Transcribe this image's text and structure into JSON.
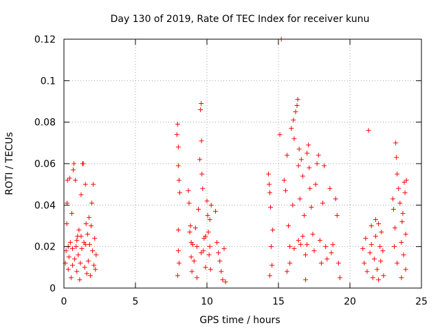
{
  "chart_data": {
    "type": "scatter",
    "title": "Day 130 of 2019, Rate Of TEC Index for receiver kunu",
    "xlabel": "GPS time / hours",
    "ylabel": "ROTI / TECUs",
    "xlim": [
      0,
      25
    ],
    "ylim": [
      0,
      0.12
    ],
    "xticks": [
      0,
      5,
      10,
      15,
      20,
      25
    ],
    "yticks": [
      0,
      0.02,
      0.04,
      0.06,
      0.08,
      0.1,
      0.12
    ],
    "xtick_labels": [
      "0",
      "5",
      "10",
      "15",
      "20",
      "25"
    ],
    "ytick_labels": [
      "0",
      "0.02",
      "0.04",
      "0.06",
      "0.08",
      "0.1",
      "0.12"
    ],
    "grid": true,
    "marker": "plus",
    "color": "#ff0000",
    "series": [
      {
        "values": [
          [
            0.1,
            0.012
          ],
          [
            0.15,
            0.018
          ],
          [
            0.2,
            0.031
          ],
          [
            0.22,
            0.041
          ],
          [
            0.25,
            0.052
          ],
          [
            0.3,
            0.009
          ],
          [
            0.35,
            0.015
          ],
          [
            0.4,
            0.053
          ],
          [
            0.45,
            0.022
          ],
          [
            0.5,
            0.005
          ],
          [
            0.55,
            0.036
          ],
          [
            0.6,
            0.011
          ],
          [
            0.65,
            0.057
          ],
          [
            0.7,
            0.06
          ],
          [
            0.75,
            0.014
          ],
          [
            0.8,
            0.052
          ],
          [
            0.85,
            0.02
          ],
          [
            0.9,
            0.008
          ],
          [
            0.95,
            0.025
          ],
          [
            1.0,
            0.016
          ],
          [
            1.05,
            0.028
          ],
          [
            1.1,
            0.004
          ],
          [
            1.15,
            0.012
          ],
          [
            1.2,
            0.045
          ],
          [
            1.25,
            0.019
          ],
          [
            1.3,
            0.06
          ],
          [
            1.35,
            0.06
          ],
          [
            1.4,
            0.022
          ],
          [
            1.45,
            0.01
          ],
          [
            1.5,
            0.05
          ],
          [
            1.55,
            0.031
          ],
          [
            1.6,
            0.007
          ],
          [
            1.65,
            0.026
          ],
          [
            1.7,
            0.013
          ],
          [
            1.75,
            0.034
          ],
          [
            1.8,
            0.021
          ],
          [
            1.85,
            0.006
          ],
          [
            1.9,
            0.03
          ],
          [
            1.95,
            0.041
          ],
          [
            2.0,
            0.018
          ],
          [
            2.05,
            0.05
          ],
          [
            2.1,
            0.011
          ],
          [
            2.15,
            0.024
          ],
          [
            2.2,
            0.009
          ],
          [
            2.25,
            0.016
          ],
          [
            0.3,
            0.02
          ],
          [
            0.6,
            0.019
          ],
          [
            0.9,
            0.023
          ],
          [
            1.2,
            0.025
          ],
          [
            1.5,
            0.021
          ],
          [
            7.9,
            0.074
          ],
          [
            7.95,
            0.079
          ],
          [
            8.0,
            0.068
          ],
          [
            8.0,
            0.059
          ],
          [
            8.05,
            0.052
          ],
          [
            8.0,
            0.028
          ],
          [
            8.05,
            0.012
          ],
          [
            7.95,
            0.006
          ],
          [
            8.1,
            0.046
          ],
          [
            8.0,
            0.018
          ],
          [
            8.7,
            0.047
          ],
          [
            8.75,
            0.041
          ],
          [
            8.8,
            0.027
          ],
          [
            8.85,
            0.03
          ],
          [
            8.9,
            0.015
          ],
          [
            8.95,
            0.008
          ],
          [
            9.0,
            0.021
          ],
          [
            9.1,
            0.013
          ],
          [
            9.2,
            0.029
          ],
          [
            9.3,
            0.005
          ],
          [
            9.4,
            0.038
          ],
          [
            9.5,
            0.062
          ],
          [
            9.55,
            0.086
          ],
          [
            9.6,
            0.089
          ],
          [
            9.62,
            0.071
          ],
          [
            9.65,
            0.055
          ],
          [
            9.7,
            0.048
          ],
          [
            9.75,
            0.018
          ],
          [
            9.8,
            0.024
          ],
          [
            9.9,
            0.01
          ],
          [
            10.0,
            0.042
          ],
          [
            10.05,
            0.035
          ],
          [
            10.1,
            0.027
          ],
          [
            10.15,
            0.016
          ],
          [
            10.2,
            0.033
          ],
          [
            10.25,
            0.009
          ],
          [
            10.3,
            0.04
          ],
          [
            10.6,
            0.037
          ],
          [
            10.7,
            0.022
          ],
          [
            10.8,
            0.017
          ],
          [
            10.9,
            0.013
          ],
          [
            11.0,
            0.008
          ],
          [
            11.1,
            0.004
          ],
          [
            11.2,
            0.019
          ],
          [
            11.3,
            0.003
          ],
          [
            9.3,
            0.02
          ],
          [
            9.6,
            0.017
          ],
          [
            9.9,
            0.025
          ],
          [
            10.2,
            0.02
          ],
          [
            8.9,
            0.022
          ],
          [
            14.3,
            0.055
          ],
          [
            14.35,
            0.05
          ],
          [
            14.4,
            0.046
          ],
          [
            14.45,
            0.039
          ],
          [
            14.5,
            0.02
          ],
          [
            14.55,
            0.011
          ],
          [
            14.6,
            0.028
          ],
          [
            14.4,
            0.006
          ],
          [
            15.1,
            0.074
          ],
          [
            15.2,
            0.12
          ],
          [
            15.4,
            0.052
          ],
          [
            15.5,
            0.047
          ],
          [
            15.6,
            0.064
          ],
          [
            15.7,
            0.03
          ],
          [
            15.8,
            0.012
          ],
          [
            15.9,
            0.077
          ],
          [
            16.0,
            0.04
          ],
          [
            16.05,
            0.081
          ],
          [
            16.1,
            0.072
          ],
          [
            16.2,
            0.085
          ],
          [
            16.3,
            0.088
          ],
          [
            16.35,
            0.091
          ],
          [
            16.4,
            0.059
          ],
          [
            16.45,
            0.067
          ],
          [
            16.5,
            0.043
          ],
          [
            16.55,
            0.021
          ],
          [
            16.6,
            0.062
          ],
          [
            16.7,
            0.054
          ],
          [
            16.8,
            0.035
          ],
          [
            16.9,
            0.016
          ],
          [
            17.0,
            0.065
          ],
          [
            17.1,
            0.069
          ],
          [
            17.15,
            0.058
          ],
          [
            17.2,
            0.048
          ],
          [
            17.3,
            0.039
          ],
          [
            17.4,
            0.026
          ],
          [
            17.5,
            0.018
          ],
          [
            17.6,
            0.05
          ],
          [
            17.7,
            0.06
          ],
          [
            17.8,
            0.064
          ],
          [
            17.9,
            0.023
          ],
          [
            18.0,
            0.012
          ],
          [
            18.1,
            0.041
          ],
          [
            18.2,
            0.059
          ],
          [
            18.4,
            0.014
          ],
          [
            18.6,
            0.048
          ],
          [
            18.8,
            0.021
          ],
          [
            19.0,
            0.043
          ],
          [
            19.1,
            0.035
          ],
          [
            19.2,
            0.012
          ],
          [
            19.3,
            0.005
          ],
          [
            15.8,
            0.02
          ],
          [
            16.1,
            0.019
          ],
          [
            16.4,
            0.023
          ],
          [
            16.7,
            0.025
          ],
          [
            17.0,
            0.021
          ],
          [
            18.3,
            0.02
          ],
          [
            18.7,
            0.017
          ],
          [
            15.6,
            0.008
          ],
          [
            16.9,
            0.004
          ],
          [
            20.9,
            0.019
          ],
          [
            21.0,
            0.012
          ],
          [
            21.1,
            0.024
          ],
          [
            21.2,
            0.008
          ],
          [
            21.3,
            0.076
          ],
          [
            21.4,
            0.017
          ],
          [
            21.5,
            0.021
          ],
          [
            21.6,
            0.005
          ],
          [
            21.7,
            0.014
          ],
          [
            21.8,
            0.025
          ],
          [
            21.9,
            0.009
          ],
          [
            22.0,
            0.031
          ],
          [
            22.1,
            0.02
          ],
          [
            22.15,
            0.013
          ],
          [
            22.2,
            0.027
          ],
          [
            22.3,
            0.018
          ],
          [
            22.35,
            0.006
          ],
          [
            21.5,
            0.03
          ],
          [
            21.8,
            0.033
          ],
          [
            22.0,
            0.004
          ],
          [
            23.0,
            0.043
          ],
          [
            23.05,
            0.038
          ],
          [
            23.1,
            0.02
          ],
          [
            23.15,
            0.029
          ],
          [
            23.2,
            0.07
          ],
          [
            23.25,
            0.063
          ],
          [
            23.3,
            0.055
          ],
          [
            23.4,
            0.048
          ],
          [
            23.5,
            0.041
          ],
          [
            23.6,
            0.022
          ],
          [
            23.65,
            0.032
          ],
          [
            23.7,
            0.036
          ],
          [
            23.75,
            0.016
          ],
          [
            23.8,
            0.051
          ],
          [
            23.85,
            0.046
          ],
          [
            23.9,
            0.009
          ],
          [
            23.95,
            0.052
          ],
          [
            23.3,
            0.012
          ],
          [
            23.6,
            0.005
          ],
          [
            23.9,
            0.026
          ]
        ]
      }
    ]
  }
}
